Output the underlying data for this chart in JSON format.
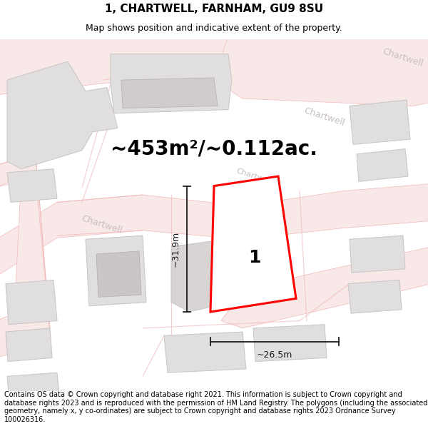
{
  "title": "1, CHARTWELL, FARNHAM, GU9 8SU",
  "subtitle": "Map shows position and indicative extent of the property.",
  "area_text": "~453m²/~0.112ac.",
  "width_label": "~26.5m",
  "height_label": "~31.9m",
  "plot_label": "1",
  "footer_text": "Contains OS data © Crown copyright and database right 2021. This information is subject to Crown copyright and database rights 2023 and is reproduced with the permission of HM Land Registry. The polygons (including the associated geometry, namely x, y co-ordinates) are subject to Crown copyright and database rights 2023 Ordnance Survey 100026316.",
  "map_bg": "#faf7f7",
  "road_fill": "#f9e8e8",
  "road_edge": "#f0b8b8",
  "building_fill": "#e0dede",
  "building_edge": "#c8c4c4",
  "plot_fill": "#ffffff",
  "plot_edge": "#ff0000",
  "dim_color": "#1a1a1a",
  "street_color": "#c8c0c0",
  "area_fontsize": 20,
  "dim_fontsize": 9,
  "plot_num_fontsize": 18,
  "street_fontsize": 9,
  "title_fontsize": 11,
  "subtitle_fontsize": 9,
  "footer_fontsize": 7.0
}
